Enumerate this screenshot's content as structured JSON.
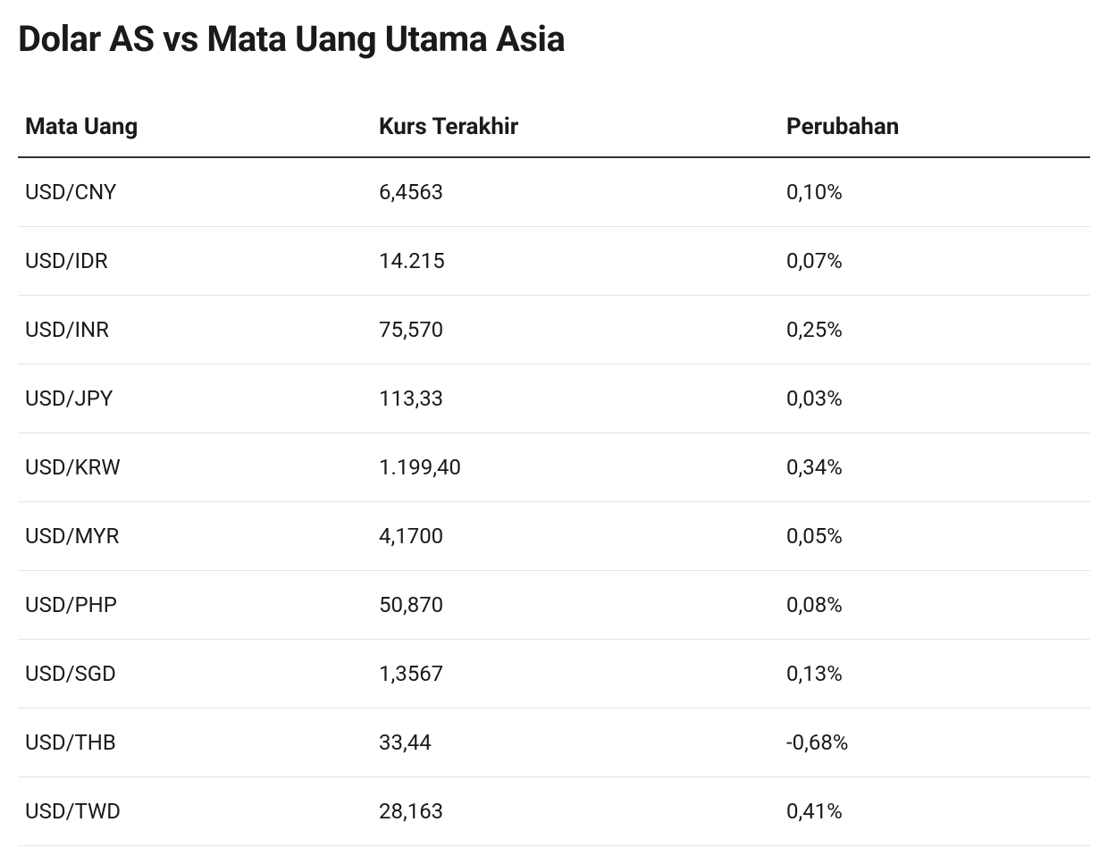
{
  "title": "Dolar AS vs Mata Uang Utama Asia",
  "table": {
    "columns": [
      {
        "label": "Mata Uang",
        "key": "currency"
      },
      {
        "label": "Kurs Terakhir",
        "key": "rate"
      },
      {
        "label": "Perubahan",
        "key": "change"
      }
    ],
    "rows": [
      {
        "currency": "USD/CNY",
        "rate": "6,4563",
        "change": "0,10%"
      },
      {
        "currency": "USD/IDR",
        "rate": "14.215",
        "change": "0,07%"
      },
      {
        "currency": "USD/INR",
        "rate": "75,570",
        "change": "0,25%"
      },
      {
        "currency": "USD/JPY",
        "rate": "113,33",
        "change": "0,03%"
      },
      {
        "currency": "USD/KRW",
        "rate": "1.199,40",
        "change": "0,34%"
      },
      {
        "currency": "USD/MYR",
        "rate": "4,1700",
        "change": "0,05%"
      },
      {
        "currency": "USD/PHP",
        "rate": "50,870",
        "change": "0,08%"
      },
      {
        "currency": "USD/SGD",
        "rate": "1,3567",
        "change": "0,13%"
      },
      {
        "currency": "USD/THB",
        "rate": "33,44",
        "change": "-0,68%"
      },
      {
        "currency": "USD/TWD",
        "rate": "28,163",
        "change": "0,41%"
      }
    ],
    "styling": {
      "background_color": "#ffffff",
      "text_color": "#1a1a1a",
      "header_border_color": "#333333",
      "row_border_color": "#e5e5e5",
      "title_fontsize": 40,
      "header_fontsize": 26,
      "cell_fontsize": 24,
      "title_fontweight": 700,
      "header_fontweight": 700,
      "cell_fontweight": 400,
      "column_widths_pct": [
        33,
        38,
        29
      ]
    }
  }
}
